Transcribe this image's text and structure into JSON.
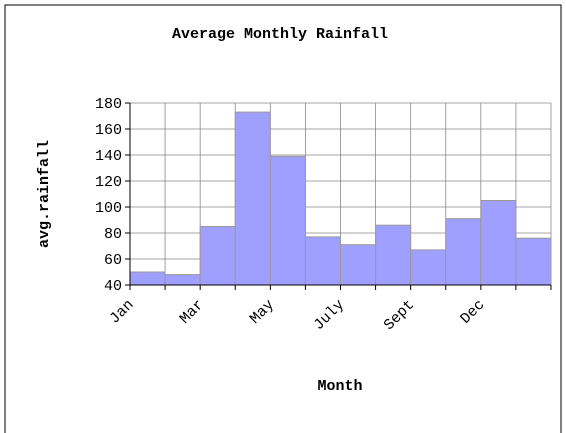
{
  "chart_data": {
    "type": "bar",
    "title": "Average Monthly Rainfall",
    "xlabel": "Month",
    "ylabel": "avg.rainfall",
    "categories": [
      "Jan",
      null,
      "Mar",
      null,
      "May",
      null,
      "July",
      null,
      "Sept",
      null,
      "Dec",
      null
    ],
    "values": [
      50,
      48,
      85,
      173,
      139,
      77,
      71,
      86,
      67,
      91,
      105,
      76
    ],
    "color": "#9f9fff",
    "ylim": [
      40,
      180
    ],
    "yticks": [
      40,
      60,
      80,
      100,
      120,
      140,
      160,
      180
    ],
    "grid": true
  }
}
